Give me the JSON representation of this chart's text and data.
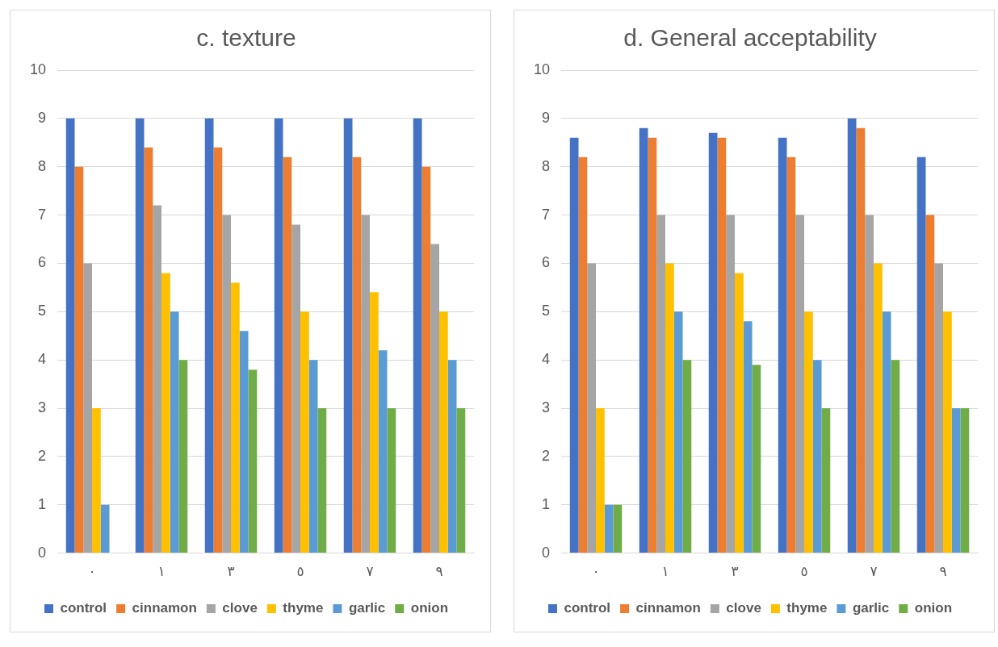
{
  "chart_data": [
    {
      "type": "bar",
      "title": "c. texture",
      "categories": [
        "٠",
        "١",
        "٣",
        "٥",
        "٧",
        "٩"
      ],
      "ylim": [
        0,
        10
      ],
      "yticks": [
        0,
        1,
        2,
        3,
        4,
        5,
        6,
        7,
        8,
        9,
        10
      ],
      "grid": "y",
      "legend": "bottom",
      "series": [
        {
          "name": "control",
          "color": "#4472c4",
          "values": [
            9,
            9,
            9,
            9,
            9,
            9
          ]
        },
        {
          "name": "cinnamon",
          "color": "#ed7d31",
          "values": [
            8,
            8.4,
            8.4,
            8.2,
            8.2,
            8
          ]
        },
        {
          "name": "clove",
          "color": "#a5a5a5",
          "values": [
            6,
            7.2,
            7,
            6.8,
            7,
            6.4
          ]
        },
        {
          "name": "thyme",
          "color": "#ffc000",
          "values": [
            3,
            5.8,
            5.6,
            5,
            5.4,
            5
          ]
        },
        {
          "name": "garlic",
          "color": "#5b9bd5",
          "values": [
            1,
            5,
            4.6,
            4,
            4.2,
            4
          ]
        },
        {
          "name": "onion",
          "color": "#70ad47",
          "values": [
            0,
            4,
            3.8,
            3,
            3,
            3
          ]
        }
      ]
    },
    {
      "type": "bar",
      "title": "d. General acceptability",
      "categories": [
        "٠",
        "١",
        "٣",
        "٥",
        "٧",
        "٩"
      ],
      "ylim": [
        0,
        10
      ],
      "yticks": [
        0,
        1,
        2,
        3,
        4,
        5,
        6,
        7,
        8,
        9,
        10
      ],
      "grid": "y",
      "legend": "bottom",
      "series": [
        {
          "name": "control",
          "color": "#4472c4",
          "values": [
            8.6,
            8.8,
            8.7,
            8.6,
            9,
            8.2
          ]
        },
        {
          "name": "cinnamon",
          "color": "#ed7d31",
          "values": [
            8.2,
            8.6,
            8.6,
            8.2,
            8.8,
            7
          ]
        },
        {
          "name": "clove",
          "color": "#a5a5a5",
          "values": [
            6,
            7,
            7,
            7,
            7,
            6
          ]
        },
        {
          "name": "thyme",
          "color": "#ffc000",
          "values": [
            3,
            6,
            5.8,
            5,
            6,
            5
          ]
        },
        {
          "name": "garlic",
          "color": "#5b9bd5",
          "values": [
            1,
            5,
            4.8,
            4,
            5,
            3
          ]
        },
        {
          "name": "onion",
          "color": "#70ad47",
          "values": [
            1,
            4,
            3.9,
            3,
            4,
            3
          ]
        }
      ]
    }
  ]
}
